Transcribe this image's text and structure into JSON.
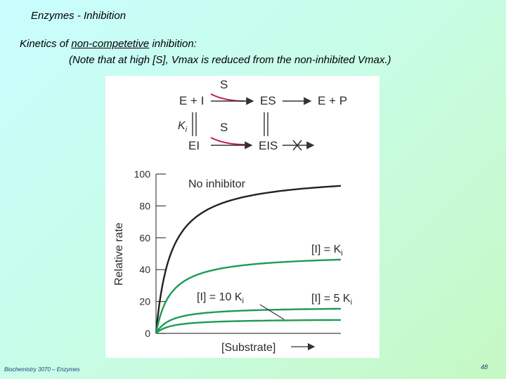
{
  "slide": {
    "header_title": "Enzymes - Inhibition",
    "heading_prefix": "Kinetics of ",
    "heading_underlined": "non-competetive",
    "heading_suffix": " inhibition:",
    "subheading": "(Note that at high [S], Vmax is reduced from the non-inhibited Vmax.)",
    "footer": "Biochemistry 3070 – Enzymes",
    "page_number": "48"
  },
  "scheme": {
    "e_plus_i": "E + I",
    "s_top": "S",
    "es": "ES",
    "e_plus_p": "E + P",
    "ki": "K",
    "ki_sub": "i",
    "s_bottom": "S",
    "ei": "EI",
    "eis": "EIS"
  },
  "chart_data": {
    "type": "line",
    "xlabel": "[Substrate]",
    "ylabel": "Relative rate",
    "ylim": [
      0,
      100
    ],
    "yticks": [
      0,
      20,
      40,
      60,
      80,
      100
    ],
    "series": [
      {
        "name": "No inhibitor",
        "vmax": 100,
        "km": 0.08,
        "color": "#222222"
      },
      {
        "name": "[I] = K",
        "sub": "i",
        "vmax": 50,
        "km": 0.08,
        "color": "#1f9a55"
      },
      {
        "name": "[I] = 5 K",
        "sub": "i",
        "vmax": 16.7,
        "km": 0.08,
        "color": "#1f9a55"
      },
      {
        "name": "[I] = 10 K",
        "sub": "i",
        "vmax": 9.1,
        "km": 0.08,
        "color": "#1f9a55"
      }
    ]
  }
}
